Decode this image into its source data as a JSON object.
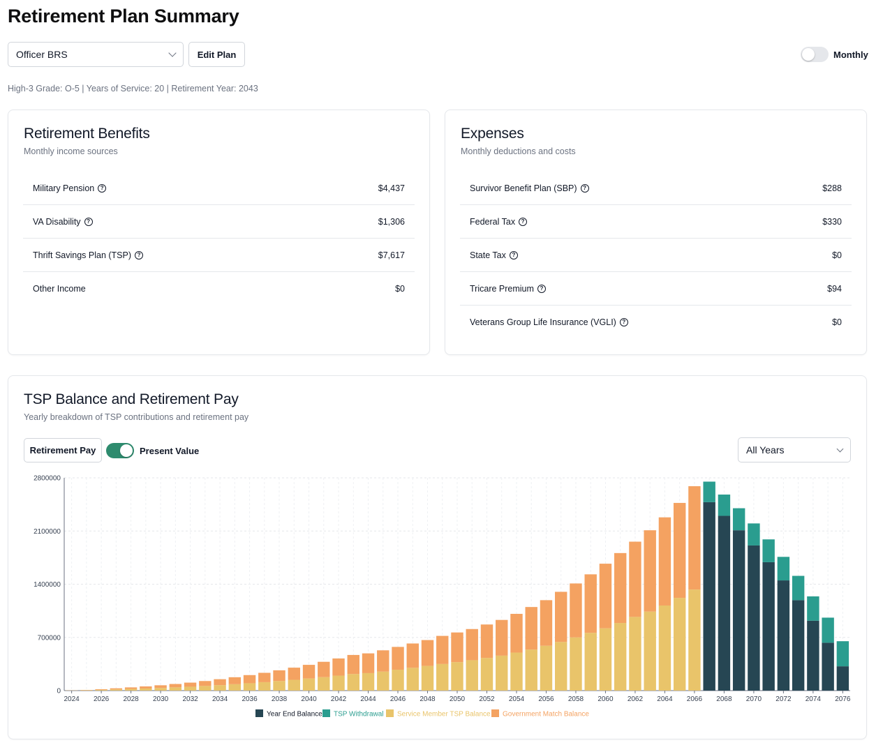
{
  "page": {
    "title": "Retirement Plan Summary"
  },
  "controls": {
    "plan_select_value": "Officer BRS",
    "edit_button": "Edit Plan",
    "monthly_label": "Monthly",
    "monthly_toggle_on": false
  },
  "meta_line": "High-3 Grade: O-5 | Years of Service: 20 | Retirement Year: 2043",
  "benefits": {
    "title": "Retirement Benefits",
    "subtitle": "Monthly income sources",
    "items": [
      {
        "label": "Military Pension",
        "amount": "$4,437",
        "help": true
      },
      {
        "label": "VA Disability",
        "amount": "$1,306",
        "help": true
      },
      {
        "label": "Thrift Savings Plan (TSP)",
        "amount": "$7,617",
        "help": true
      },
      {
        "label": "Other Income",
        "amount": "$0",
        "help": false
      }
    ]
  },
  "expenses": {
    "title": "Expenses",
    "subtitle": "Monthly deductions and costs",
    "items": [
      {
        "label": "Survivor Benefit Plan (SBP)",
        "amount": "$288",
        "help": true
      },
      {
        "label": "Federal Tax",
        "amount": "$330",
        "help": true
      },
      {
        "label": "State Tax",
        "amount": "$0",
        "help": true
      },
      {
        "label": "Tricare Premium",
        "amount": "$94",
        "help": true
      },
      {
        "label": "Veterans Group Life Insurance (VGLI)",
        "amount": "$0",
        "help": true
      }
    ]
  },
  "tsp_section": {
    "title": "TSP Balance and Retirement Pay",
    "subtitle": "Yearly breakdown of TSP contributions and retirement pay",
    "retirement_pay_button": "Retirement Pay",
    "present_value_label": "Present Value",
    "present_value_on": true,
    "years_select_value": "All Years"
  },
  "icons": {
    "help": "question-circle-icon",
    "chevron": "chevron-down-icon"
  },
  "colors": {
    "year_end_balance": "#264653",
    "tsp_withdrawal": "#2a9d8f",
    "service_member": "#e9c46a",
    "government_match": "#f4a261",
    "toggle_on": "#2e8b6e"
  },
  "chart_data": {
    "type": "bar",
    "stacked": true,
    "ylim": [
      0,
      2800000
    ],
    "yticks": [
      0,
      700000,
      1400000,
      2100000,
      2800000
    ],
    "ytick_labels": [
      "0",
      "700000",
      "1400000",
      "2100000",
      "2800000"
    ],
    "x": [
      2024,
      2025,
      2026,
      2027,
      2028,
      2029,
      2030,
      2031,
      2032,
      2033,
      2034,
      2035,
      2036,
      2037,
      2038,
      2039,
      2040,
      2041,
      2042,
      2043,
      2044,
      2045,
      2046,
      2047,
      2048,
      2049,
      2050,
      2051,
      2052,
      2053,
      2054,
      2055,
      2056,
      2057,
      2058,
      2059,
      2060,
      2061,
      2062,
      2063,
      2064,
      2065,
      2066,
      2067,
      2068,
      2069,
      2070,
      2071,
      2072,
      2073,
      2074,
      2075,
      2076
    ],
    "xtick_labels": [
      "2024",
      "2026",
      "2028",
      "2030",
      "2032",
      "2034",
      "2036",
      "2038",
      "2040",
      "2042",
      "2044",
      "2046",
      "2048",
      "2050",
      "2052",
      "2054",
      "2056",
      "2058",
      "2060",
      "2062",
      "2064",
      "2066",
      "2068",
      "2070",
      "2072",
      "2074",
      "2076"
    ],
    "grid": true,
    "legend_position": "bottom",
    "series": [
      {
        "name": "Year End Balance",
        "color": "#264653",
        "values": [
          0,
          0,
          0,
          0,
          0,
          0,
          0,
          0,
          0,
          0,
          0,
          0,
          0,
          0,
          0,
          0,
          0,
          0,
          0,
          0,
          0,
          0,
          0,
          0,
          0,
          0,
          0,
          0,
          0,
          0,
          0,
          0,
          0,
          0,
          0,
          0,
          0,
          0,
          0,
          0,
          0,
          0,
          0,
          2480000,
          2300000,
          2110000,
          1910000,
          1690000,
          1450000,
          1190000,
          920000,
          630000,
          320000
        ]
      },
      {
        "name": "TSP Withdrawal",
        "color": "#2a9d8f",
        "values": [
          0,
          0,
          0,
          0,
          0,
          0,
          0,
          0,
          0,
          0,
          0,
          0,
          0,
          0,
          0,
          0,
          0,
          0,
          0,
          0,
          0,
          0,
          0,
          0,
          0,
          0,
          0,
          0,
          0,
          0,
          0,
          0,
          0,
          0,
          0,
          0,
          0,
          0,
          0,
          0,
          0,
          0,
          0,
          270000,
          280000,
          290000,
          290000,
          300000,
          310000,
          320000,
          320000,
          330000,
          330000
        ]
      },
      {
        "name": "Service Member TSP Balance",
        "color": "#e9c46a",
        "values": [
          2000,
          5000,
          10000,
          16000,
          22000,
          28000,
          35000,
          43000,
          51000,
          61000,
          72000,
          84000,
          97000,
          111000,
          126000,
          142000,
          159000,
          177000,
          197000,
          218000,
          230000,
          250000,
          275000,
          300000,
          325000,
          350000,
          375000,
          400000,
          430000,
          460000,
          500000,
          540000,
          590000,
          640000,
          700000,
          760000,
          820000,
          890000,
          970000,
          1040000,
          1120000,
          1220000,
          1330000,
          0,
          0,
          0,
          0,
          0,
          0,
          0,
          0,
          0,
          0
        ]
      },
      {
        "name": "Government Match Balance",
        "color": "#f4a261",
        "values": [
          1000,
          3000,
          8000,
          14000,
          20000,
          27000,
          35000,
          44000,
          54000,
          65000,
          78000,
          92000,
          107000,
          123000,
          141000,
          160000,
          180000,
          202000,
          226000,
          251000,
          260000,
          280000,
          300000,
          320000,
          340000,
          370000,
          390000,
          410000,
          440000,
          470000,
          510000,
          560000,
          600000,
          660000,
          710000,
          770000,
          850000,
          920000,
          990000,
          1070000,
          1160000,
          1250000,
          1360000,
          0,
          0,
          0,
          0,
          0,
          0,
          0,
          0,
          0,
          0
        ]
      }
    ]
  }
}
